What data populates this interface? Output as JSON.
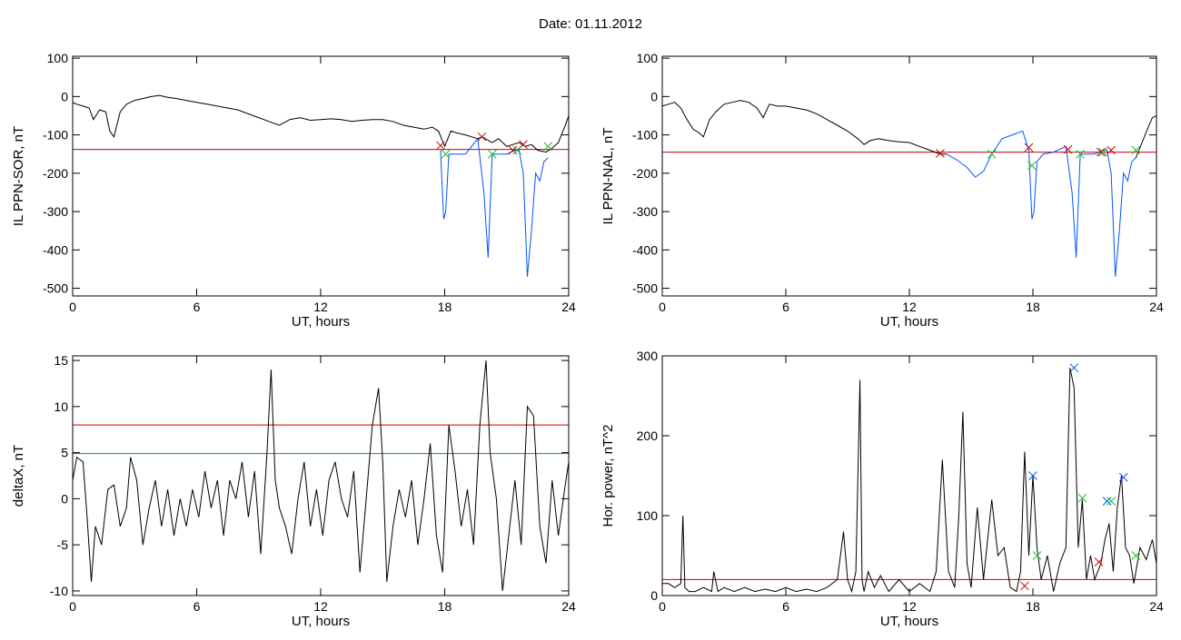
{
  "figure": {
    "title": "Date:  01.11.2012"
  },
  "colors": {
    "black": "#000000",
    "red": "#cc0000",
    "blue": "#0055ff",
    "green": "#22bb22",
    "teal": "#0088aa"
  },
  "chart_data": [
    {
      "type": "line",
      "ylabel": "IL PPN-SOR, nT",
      "xlabel": "UT, hours",
      "xlim": [
        0,
        24
      ],
      "ylim": [
        -520,
        105
      ],
      "xticks": [
        0,
        6,
        12,
        18,
        24
      ],
      "yticks": [
        100,
        0,
        -100,
        -200,
        -300,
        -400,
        -500
      ],
      "threshold": -138,
      "series": [
        {
          "color": "#000000",
          "x": [
            0,
            0.2,
            0.5,
            0.8,
            1.0,
            1.3,
            1.6,
            1.8,
            2.0,
            2.3,
            2.6,
            3.0,
            3.4,
            3.8,
            4.2,
            4.6,
            5.0,
            5.5,
            6.0,
            6.5,
            7.0,
            7.5,
            8.0,
            8.5,
            9.0,
            9.5,
            10.0,
            10.5,
            11.0,
            11.5,
            12.0,
            12.5,
            13.0,
            13.5,
            14.0,
            14.5,
            15.0,
            15.5,
            16.0,
            16.5,
            17.0,
            17.4,
            17.7,
            18.0,
            18.3,
            18.6,
            19.0,
            19.3,
            19.6,
            19.8,
            20.3,
            20.6,
            21.0,
            21.3,
            21.6,
            21.9,
            22.2,
            22.5,
            22.9,
            23.2,
            23.5,
            23.8,
            24.0
          ],
          "y": [
            -15,
            -20,
            -25,
            -30,
            -60,
            -35,
            -40,
            -90,
            -105,
            -40,
            -20,
            -10,
            -5,
            0,
            3,
            -2,
            -5,
            -10,
            -15,
            -20,
            -25,
            -30,
            -35,
            -45,
            -55,
            -65,
            -75,
            -60,
            -55,
            -62,
            -60,
            -58,
            -60,
            -65,
            -62,
            -60,
            -60,
            -65,
            -75,
            -80,
            -85,
            -80,
            -90,
            -130,
            -90,
            -95,
            -100,
            -105,
            -110,
            -105,
            -120,
            -110,
            -130,
            -125,
            -120,
            -130,
            -125,
            -140,
            -145,
            -135,
            -120,
            -80,
            -50
          ]
        },
        {
          "color": "#0055ff",
          "x": [
            17.8,
            17.95,
            18.05,
            18.2,
            18.4,
            19.0,
            19.6,
            19.9,
            20.1,
            20.3,
            21.0,
            21.4,
            21.6,
            21.8,
            21.9,
            22.0,
            22.2,
            22.4,
            22.6,
            22.8,
            23.0
          ],
          "y": [
            -140,
            -320,
            -300,
            -150,
            -150,
            -150,
            -110,
            -250,
            -420,
            -150,
            -150,
            -140,
            -140,
            -200,
            -330,
            -470,
            -350,
            -200,
            -220,
            -170,
            -160
          ]
        }
      ],
      "markers": [
        {
          "color": "#cc0000",
          "x": [
            17.8,
            19.8,
            21.3,
            21.8
          ],
          "y": [
            -128,
            -105,
            -140,
            -125
          ]
        },
        {
          "color": "#22bb22",
          "x": [
            18.05,
            20.3,
            21.5,
            23.0
          ],
          "y": [
            -150,
            -150,
            -140,
            -130
          ]
        }
      ]
    },
    {
      "type": "line",
      "ylabel": "IL PPN-NAL, nT",
      "xlabel": "UT, hours",
      "xlim": [
        0,
        24
      ],
      "ylim": [
        -520,
        105
      ],
      "xticks": [
        0,
        6,
        12,
        18,
        24
      ],
      "yticks": [
        100,
        0,
        -100,
        -200,
        -300,
        -400,
        -500
      ],
      "threshold": -145,
      "series": [
        {
          "color": "#000000",
          "x": [
            0,
            0.3,
            0.6,
            0.9,
            1.2,
            1.5,
            1.8,
            2.0,
            2.3,
            2.6,
            3.0,
            3.4,
            3.8,
            4.2,
            4.6,
            4.9,
            5.2,
            5.6,
            6.0,
            6.5,
            7.0,
            7.5,
            8.0,
            8.5,
            9.0,
            9.5,
            9.8,
            10.1,
            10.5,
            11.0,
            11.5,
            12.0,
            12.5,
            13.0,
            13.5,
            13.8
          ],
          "y": [
            -25,
            -20,
            -15,
            -30,
            -60,
            -85,
            -95,
            -105,
            -60,
            -40,
            -20,
            -15,
            -10,
            -15,
            -30,
            -55,
            -20,
            -25,
            -25,
            -30,
            -35,
            -45,
            -60,
            -75,
            -90,
            -110,
            -125,
            -115,
            -110,
            -115,
            -118,
            -120,
            -130,
            -140,
            -150,
            -150
          ]
        },
        {
          "color": "#0055ff",
          "x": [
            13.8,
            14.3,
            14.8,
            15.2,
            15.6,
            16.0,
            16.5,
            17.0,
            17.5,
            17.8,
            17.95,
            18.05,
            18.2,
            18.5,
            19.0,
            19.6,
            19.9,
            20.1,
            20.3,
            21.0,
            21.4,
            21.6,
            21.8,
            21.9,
            22.0,
            22.2,
            22.4,
            22.6,
            22.8,
            23.0
          ],
          "y": [
            -150,
            -165,
            -185,
            -210,
            -195,
            -150,
            -110,
            -100,
            -90,
            -140,
            -320,
            -300,
            -170,
            -150,
            -145,
            -130,
            -250,
            -420,
            -150,
            -150,
            -140,
            -140,
            -200,
            -330,
            -470,
            -350,
            -200,
            -220,
            -170,
            -160
          ]
        },
        {
          "color": "#000000",
          "x": [
            23.0,
            23.3,
            23.6,
            23.8,
            24.0
          ],
          "y": [
            -160,
            -120,
            -80,
            -55,
            -50
          ]
        }
      ],
      "markers": [
        {
          "color": "#cc0000",
          "x": [
            13.5,
            17.8,
            19.7,
            21.3,
            21.8
          ],
          "y": [
            -148,
            -133,
            -138,
            -145,
            -140
          ]
        },
        {
          "color": "#22bb22",
          "x": [
            16.0,
            17.95,
            20.3,
            21.4,
            23.0
          ],
          "y": [
            -150,
            -180,
            -150,
            -145,
            -140
          ]
        }
      ]
    },
    {
      "type": "line",
      "ylabel": "deltaX, nT",
      "xlabel": "UT, hours",
      "xlim": [
        0,
        24
      ],
      "ylim": [
        -10.5,
        15.5
      ],
      "xticks": [
        0,
        6,
        12,
        18,
        24
      ],
      "yticks": [
        15,
        10,
        5,
        0,
        -5,
        -10
      ],
      "thresholds": [
        {
          "value": 8,
          "color": "#cc0000"
        },
        {
          "value": 4.9,
          "color": "#0088aa"
        }
      ],
      "series": [
        {
          "color": "#000000",
          "x": [
            0,
            0.2,
            0.5,
            0.7,
            0.9,
            1.1,
            1.4,
            1.7,
            2.0,
            2.3,
            2.6,
            2.8,
            3.1,
            3.4,
            3.7,
            4.0,
            4.3,
            4.6,
            4.9,
            5.2,
            5.5,
            5.8,
            6.1,
            6.4,
            6.7,
            7.0,
            7.3,
            7.6,
            7.9,
            8.2,
            8.5,
            8.8,
            9.1,
            9.4,
            9.6,
            9.8,
            10.0,
            10.3,
            10.6,
            10.9,
            11.2,
            11.5,
            11.8,
            12.1,
            12.4,
            12.7,
            13.0,
            13.3,
            13.6,
            13.9,
            14.2,
            14.5,
            14.8,
            15.0,
            15.2,
            15.5,
            15.8,
            16.1,
            16.4,
            16.7,
            17.0,
            17.3,
            17.6,
            17.9,
            18.2,
            18.5,
            18.8,
            19.1,
            19.4,
            19.7,
            20.0,
            20.2,
            20.5,
            20.8,
            21.1,
            21.4,
            21.7,
            22.0,
            22.3,
            22.6,
            22.9,
            23.2,
            23.5,
            23.8,
            24.0
          ],
          "y": [
            2,
            4.5,
            4,
            -2,
            -9,
            -3,
            -5,
            1,
            1.5,
            -3,
            -1,
            4.5,
            2,
            -5,
            -1,
            2,
            -3,
            1,
            -4,
            0,
            -3,
            1,
            -2,
            3,
            -1,
            2,
            -4,
            2,
            0,
            4,
            -2,
            3,
            -6,
            5,
            14,
            2,
            -1,
            -3,
            -6,
            0,
            4,
            -3,
            1,
            -4,
            2,
            4,
            0,
            -2,
            3,
            -8,
            0,
            8,
            12,
            4,
            -9,
            -3,
            1,
            -2,
            2,
            -5,
            0,
            6,
            -4,
            -8,
            8,
            3,
            -3,
            1,
            -5,
            8,
            15,
            5,
            0,
            -10,
            -4,
            2,
            -5,
            10,
            9,
            -3,
            -7,
            2,
            -4,
            1,
            4
          ]
        }
      ]
    },
    {
      "type": "line",
      "ylabel": "Hor. power, nT^2",
      "xlabel": "UT, hours",
      "xlim": [
        0,
        24
      ],
      "ylim": [
        0,
        300
      ],
      "xticks": [
        0,
        6,
        12,
        18,
        24
      ],
      "yticks": [
        0,
        100,
        200,
        300
      ],
      "threshold": 20,
      "series": [
        {
          "color": "#000000",
          "x": [
            0,
            0.3,
            0.6,
            0.9,
            1.0,
            1.1,
            1.3,
            1.6,
            2.0,
            2.4,
            2.5,
            2.7,
            3.0,
            3.5,
            4.0,
            4.5,
            5.0,
            5.5,
            6.0,
            6.5,
            7.0,
            7.5,
            8.0,
            8.5,
            8.8,
            9.0,
            9.2,
            9.4,
            9.6,
            9.7,
            9.8,
            10.0,
            10.3,
            10.6,
            11.0,
            11.5,
            12.0,
            12.5,
            13.0,
            13.3,
            13.6,
            13.9,
            14.2,
            14.4,
            14.6,
            14.8,
            15.0,
            15.3,
            15.6,
            16.0,
            16.3,
            16.6,
            16.9,
            17.2,
            17.4,
            17.6,
            17.8,
            18.0,
            18.2,
            18.4,
            18.7,
            19.0,
            19.3,
            19.6,
            19.8,
            20.0,
            20.2,
            20.4,
            20.6,
            20.8,
            21.0,
            21.3,
            21.5,
            21.7,
            21.9,
            22.1,
            22.3,
            22.5,
            22.7,
            22.9,
            23.2,
            23.5,
            23.8,
            24.0
          ],
          "y": [
            15,
            15,
            10,
            15,
            100,
            10,
            5,
            5,
            10,
            5,
            30,
            5,
            10,
            5,
            10,
            5,
            8,
            5,
            10,
            5,
            8,
            5,
            10,
            20,
            80,
            20,
            5,
            30,
            270,
            20,
            5,
            30,
            10,
            25,
            5,
            20,
            5,
            15,
            5,
            30,
            170,
            30,
            10,
            100,
            230,
            40,
            10,
            110,
            20,
            120,
            50,
            60,
            10,
            5,
            30,
            180,
            50,
            150,
            60,
            20,
            50,
            5,
            40,
            60,
            285,
            260,
            60,
            120,
            20,
            50,
            20,
            40,
            70,
            90,
            30,
            110,
            150,
            60,
            50,
            15,
            60,
            45,
            70,
            40
          ]
        }
      ],
      "markers": [
        {
          "color": "#cc0000",
          "x": [
            17.6,
            21.2
          ],
          "y": [
            12,
            42
          ]
        },
        {
          "color": "#0055ff",
          "x": [
            18.0,
            20.0,
            21.6,
            22.4
          ],
          "y": [
            150,
            285,
            118,
            148
          ]
        },
        {
          "color": "#22bb22",
          "x": [
            18.2,
            20.4,
            21.8,
            23.0
          ],
          "y": [
            50,
            122,
            118,
            50
          ]
        }
      ]
    }
  ]
}
